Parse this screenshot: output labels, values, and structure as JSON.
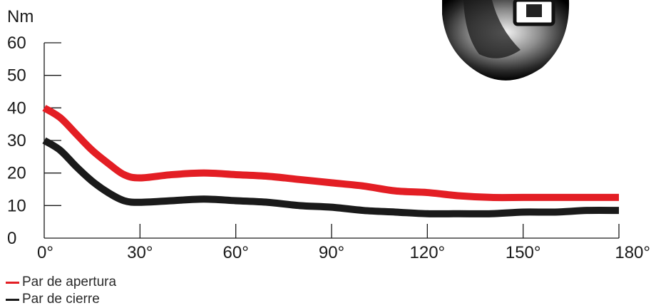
{
  "chart_data": {
    "type": "line",
    "ylabel": "Nm",
    "xlabel": "",
    "ylim": [
      0,
      60
    ],
    "xlim": [
      0,
      180
    ],
    "yticks": [
      "0",
      "10",
      "20",
      "30",
      "40",
      "50",
      "60"
    ],
    "xticks": [
      "0°",
      "30°",
      "60°",
      "90°",
      "120°",
      "150°",
      "180°"
    ],
    "series": [
      {
        "name": "Par de apertura",
        "color": "#e31e24",
        "points": [
          [
            0,
            40
          ],
          [
            5,
            37
          ],
          [
            10,
            32
          ],
          [
            15,
            27
          ],
          [
            20,
            23
          ],
          [
            25,
            19.5
          ],
          [
            30,
            18.5
          ],
          [
            40,
            19.5
          ],
          [
            50,
            20
          ],
          [
            60,
            19.5
          ],
          [
            70,
            19
          ],
          [
            80,
            18
          ],
          [
            90,
            17
          ],
          [
            100,
            16
          ],
          [
            110,
            14.5
          ],
          [
            120,
            14
          ],
          [
            130,
            13
          ],
          [
            140,
            12.5
          ],
          [
            150,
            12.5
          ],
          [
            160,
            12.5
          ],
          [
            170,
            12.5
          ],
          [
            180,
            12.5
          ]
        ]
      },
      {
        "name": "Par de cierre",
        "color": "#1a1a1a",
        "points": [
          [
            0,
            30
          ],
          [
            5,
            27
          ],
          [
            10,
            22
          ],
          [
            15,
            17.5
          ],
          [
            20,
            14
          ],
          [
            25,
            11.5
          ],
          [
            30,
            11
          ],
          [
            40,
            11.5
          ],
          [
            50,
            12
          ],
          [
            60,
            11.5
          ],
          [
            70,
            11
          ],
          [
            80,
            10
          ],
          [
            90,
            9.5
          ],
          [
            100,
            8.5
          ],
          [
            110,
            8
          ],
          [
            120,
            7.5
          ],
          [
            130,
            7.5
          ],
          [
            140,
            7.5
          ],
          [
            150,
            8
          ],
          [
            160,
            8
          ],
          [
            170,
            8.5
          ],
          [
            180,
            8.5
          ]
        ]
      }
    ],
    "legend_position": "bottom-left",
    "grid": false
  },
  "decoration": {
    "image_icon": "door-hinge-photo-icon"
  }
}
